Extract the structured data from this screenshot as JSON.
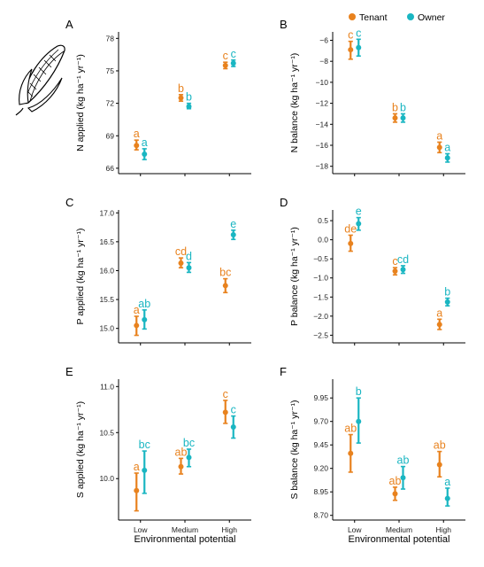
{
  "colors": {
    "tenant": "#E8821E",
    "owner": "#1AB6C2"
  },
  "legend": {
    "items": [
      {
        "label": "Tenant",
        "color": "#E8821E"
      },
      {
        "label": "Owner",
        "color": "#1AB6C2"
      }
    ],
    "placement": "top-right"
  },
  "x_title": "Environmental potential",
  "icon": "corn-cob-icon",
  "chart_data": [
    {
      "panel": "A",
      "type": "scatter",
      "ylabel": "N applied (kg ha⁻¹ yr⁻¹)",
      "categories": [
        "Low",
        "Medium",
        "High"
      ],
      "ylim": [
        65.5,
        78.6
      ],
      "yticks": [
        66,
        69,
        72,
        75,
        78
      ],
      "yticklabels": [
        "66",
        "69",
        "72",
        "75",
        "78"
      ],
      "show_xticks": false,
      "series": [
        {
          "name": "Tenant",
          "values": [
            68.1,
            72.5,
            75.5
          ],
          "err_low": [
            67.7,
            72.2,
            75.2
          ],
          "err_high": [
            68.6,
            72.8,
            75.8
          ],
          "letters": [
            "a",
            "b",
            "c"
          ]
        },
        {
          "name": "Owner",
          "values": [
            67.3,
            71.7,
            75.7
          ],
          "err_low": [
            66.8,
            71.5,
            75.4
          ],
          "err_high": [
            67.8,
            72.0,
            76.0
          ],
          "letters": [
            "a",
            "b",
            "c"
          ]
        }
      ]
    },
    {
      "panel": "B",
      "type": "scatter",
      "ylabel": "N balance (kg ha⁻¹ yr⁻¹)",
      "categories": [
        "Low",
        "Medium",
        "High"
      ],
      "ylim": [
        -18.7,
        -5.2
      ],
      "yticks": [
        -6,
        -8,
        -10,
        -12,
        -14,
        -16,
        -18
      ],
      "yticklabels": [
        "−6",
        "−8",
        "−10",
        "−12",
        "−14",
        "−16",
        "−18"
      ],
      "show_xticks": false,
      "series": [
        {
          "name": "Tenant",
          "values": [
            -6.9,
            -13.4,
            -16.2
          ],
          "err_low": [
            -7.8,
            -13.8,
            -16.7
          ],
          "err_high": [
            -6.1,
            -13.0,
            -15.7
          ],
          "letters": [
            "c",
            "b",
            "a"
          ]
        },
        {
          "name": "Owner",
          "values": [
            -6.7,
            -13.4,
            -17.2
          ],
          "err_low": [
            -7.5,
            -13.8,
            -17.6
          ],
          "err_high": [
            -5.9,
            -13.0,
            -16.8
          ],
          "letters": [
            "c",
            "b",
            "a"
          ]
        }
      ]
    },
    {
      "panel": "C",
      "type": "scatter",
      "ylabel": "P applied (kg ha⁻¹ yr⁻¹)",
      "categories": [
        "Low",
        "Medium",
        "High"
      ],
      "ylim": [
        14.75,
        17.05
      ],
      "yticks": [
        15.0,
        15.5,
        16.0,
        16.5,
        17.0
      ],
      "yticklabels": [
        "15.0",
        "15.5",
        "16.0",
        "16.5",
        "17.0"
      ],
      "show_xticks": false,
      "series": [
        {
          "name": "Tenant",
          "values": [
            15.05,
            16.13,
            15.74
          ],
          "err_low": [
            14.88,
            16.05,
            15.62
          ],
          "err_high": [
            15.21,
            16.22,
            15.86
          ],
          "letters": [
            "a",
            "cd",
            "bc"
          ]
        },
        {
          "name": "Owner",
          "values": [
            15.15,
            16.05,
            16.62
          ],
          "err_low": [
            14.99,
            15.97,
            16.54
          ],
          "err_high": [
            15.32,
            16.14,
            16.7
          ],
          "letters": [
            "ab",
            "d",
            "e"
          ]
        }
      ]
    },
    {
      "panel": "D",
      "type": "scatter",
      "ylabel": "P balance (kg ha⁻¹ yr⁻¹)",
      "categories": [
        "Low",
        "Medium",
        "High"
      ],
      "ylim": [
        -2.7,
        0.78
      ],
      "yticks": [
        0.5,
        0.0,
        -0.5,
        -1.0,
        -1.5,
        -2.0,
        -2.5
      ],
      "yticklabels": [
        "0.5",
        "0.0",
        "−0.5",
        "−1.0",
        "−1.5",
        "−2.0",
        "−2.5"
      ],
      "show_xticks": false,
      "series": [
        {
          "name": "Tenant",
          "values": [
            -0.1,
            -0.82,
            -2.22
          ],
          "err_low": [
            -0.3,
            -0.92,
            -2.35
          ],
          "err_high": [
            0.12,
            -0.73,
            -2.08
          ],
          "letters": [
            "de",
            "c",
            "a"
          ]
        },
        {
          "name": "Owner",
          "values": [
            0.42,
            -0.78,
            -1.63
          ],
          "err_low": [
            0.25,
            -0.88,
            -1.73
          ],
          "err_high": [
            0.58,
            -0.68,
            -1.53
          ],
          "letters": [
            "e",
            "cd",
            "b"
          ]
        }
      ]
    },
    {
      "panel": "E",
      "type": "scatter",
      "ylabel": "S applied (kg ha⁻¹ yr⁻¹)",
      "categories": [
        "Low",
        "Medium",
        "High"
      ],
      "ylim": [
        9.55,
        11.08
      ],
      "yticks": [
        10.0,
        10.5,
        11.0
      ],
      "yticklabels": [
        "10.0",
        "10.5",
        "11.0"
      ],
      "show_xticks": true,
      "series": [
        {
          "name": "Tenant",
          "values": [
            9.87,
            10.13,
            10.72
          ],
          "err_low": [
            9.65,
            10.05,
            10.6
          ],
          "err_high": [
            10.06,
            10.22,
            10.85
          ],
          "letters": [
            "a",
            "ab",
            "c"
          ]
        },
        {
          "name": "Owner",
          "values": [
            10.09,
            10.23,
            10.56
          ],
          "err_low": [
            9.84,
            10.13,
            10.44
          ],
          "err_high": [
            10.3,
            10.32,
            10.68
          ],
          "letters": [
            "bc",
            "bc",
            "c"
          ]
        }
      ]
    },
    {
      "panel": "F",
      "type": "scatter",
      "ylabel": "S balance (kg ha⁻¹ yr⁻¹)",
      "categories": [
        "Low",
        "Medium",
        "High"
      ],
      "ylim": [
        8.65,
        10.15
      ],
      "yticks": [
        9.95,
        9.7,
        9.45,
        9.2,
        8.95,
        8.7
      ],
      "yticklabels": [
        "9.95",
        "9.70",
        "9.45",
        "9.20",
        "8.95",
        "8.70"
      ],
      "show_xticks": true,
      "series": [
        {
          "name": "Tenant",
          "values": [
            9.36,
            8.93,
            9.24
          ],
          "err_low": [
            9.16,
            8.86,
            9.11
          ],
          "err_high": [
            9.56,
            9.0,
            9.38
          ],
          "letters": [
            "ab",
            "ab",
            "ab"
          ]
        },
        {
          "name": "Owner",
          "values": [
            9.7,
            9.1,
            8.88
          ],
          "err_low": [
            9.47,
            8.98,
            8.8
          ],
          "err_high": [
            9.95,
            9.22,
            8.99
          ],
          "letters": [
            "b",
            "ab",
            "a"
          ]
        }
      ]
    }
  ]
}
